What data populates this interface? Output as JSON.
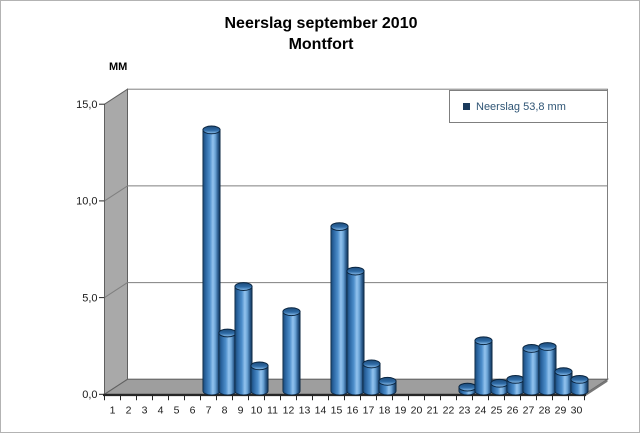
{
  "title": {
    "line1": "Neerslag september 2010",
    "line2": "Montfort"
  },
  "y_axis_unit_label": "MM",
  "legend": {
    "label": "Neerslag 53,8 mm",
    "marker_color": "#1a3a5c",
    "text_color": "#2f5575"
  },
  "colors": {
    "bar_outline": "#0a2540",
    "bar_body_gradient": [
      [
        "0%",
        "#1b4872"
      ],
      [
        "15%",
        "#2a64a0"
      ],
      [
        "40%",
        "#4d8ecb"
      ],
      [
        "58%",
        "#93c3ee"
      ],
      [
        "72%",
        "#6ba4d6"
      ],
      [
        "88%",
        "#29598b"
      ],
      [
        "100%",
        "#123454"
      ]
    ],
    "bar_top_gradient": [
      [
        "0%",
        "#1d4c7a"
      ],
      [
        "55%",
        "#2f6ba6"
      ],
      [
        "100%",
        "#8fc2ee"
      ]
    ],
    "left_wall": "#a9a9a9",
    "floor": "#9e9e9e",
    "floor_side": "#777777",
    "back_wall": "#ffffff",
    "wall_edge": "#606060",
    "gridline": "#7f7f7f",
    "axis": "#262626"
  },
  "chart_data": {
    "type": "bar",
    "style": "3d-cylinder",
    "title": "Neerslag september 2010 Montfort",
    "xlabel": "",
    "ylabel": "MM",
    "ylim": [
      0,
      15
    ],
    "ytick_values": [
      0,
      5,
      10,
      15
    ],
    "ytick_labels": [
      "0,0",
      "5,0",
      "10,0",
      "15,0"
    ],
    "grid": true,
    "legend_entry": "Neerslag 53,8 mm",
    "legend_position": "top-right",
    "total_mm": 53.8,
    "categories": [
      1,
      2,
      3,
      4,
      5,
      6,
      7,
      8,
      9,
      10,
      11,
      12,
      13,
      14,
      15,
      16,
      17,
      18,
      19,
      20,
      21,
      22,
      23,
      24,
      25,
      26,
      27,
      28,
      29,
      30
    ],
    "values": [
      0,
      0,
      0,
      0,
      0,
      0,
      13.5,
      3.0,
      5.4,
      1.3,
      0,
      4.1,
      0,
      0,
      8.5,
      6.2,
      1.4,
      0.5,
      0,
      0,
      0,
      0,
      0.2,
      2.6,
      0.4,
      0.6,
      2.2,
      2.3,
      1.0,
      0.6
    ]
  }
}
